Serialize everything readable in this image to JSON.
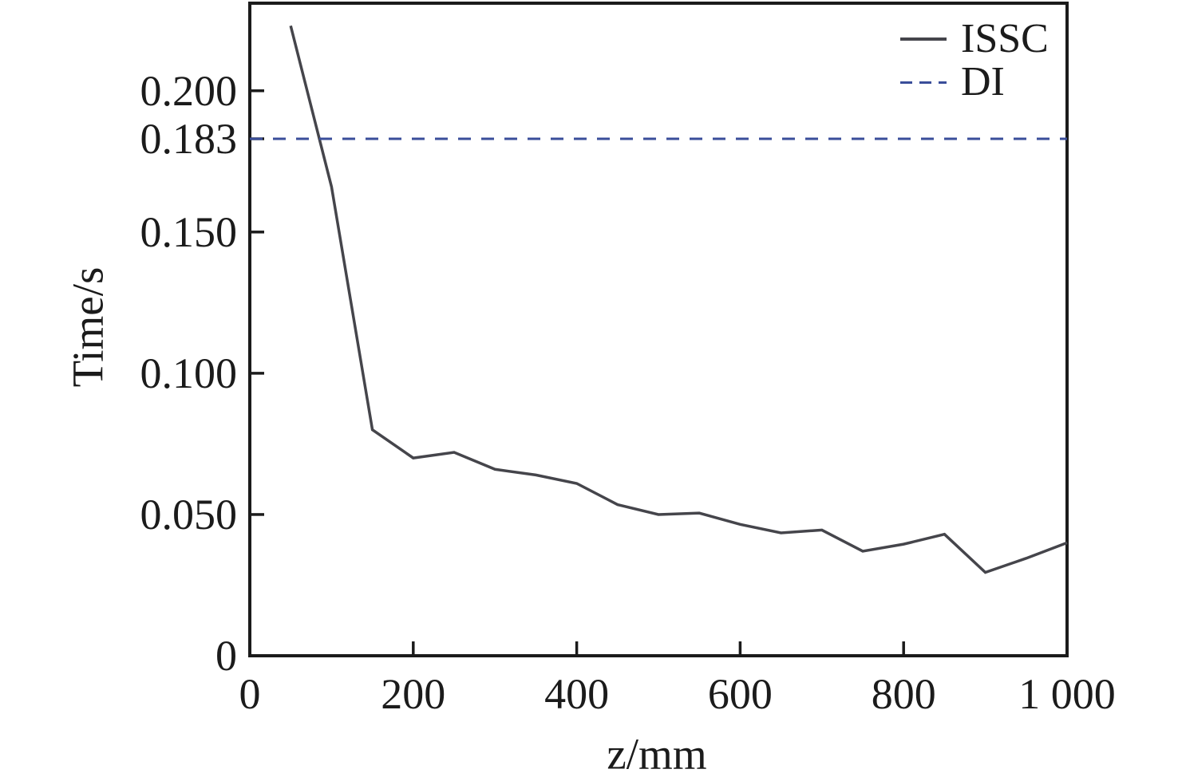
{
  "chart_data": {
    "type": "line",
    "title": "",
    "xlabel": "z/mm",
    "ylabel": "Time/s",
    "xlim": [
      0,
      1000
    ],
    "ylim": [
      0,
      0.231
    ],
    "grid": false,
    "legend_position": "top-right-inside",
    "colors": {
      "axis": "#1b1b1b",
      "text": "#1b1b1b",
      "issc_line": "#45454b",
      "di_line": "#3a4e9a"
    },
    "x_ticks": [
      {
        "v": 0,
        "label": "0",
        "mark": false
      },
      {
        "v": 200,
        "label": "200",
        "mark": true
      },
      {
        "v": 400,
        "label": "400",
        "mark": true
      },
      {
        "v": 600,
        "label": "600",
        "mark": true
      },
      {
        "v": 800,
        "label": "800",
        "mark": true
      },
      {
        "v": 1000,
        "label": "1 000",
        "mark": false
      }
    ],
    "y_ticks": [
      {
        "v": 0,
        "label": "0",
        "mark": false
      },
      {
        "v": 0.05,
        "label": "0.050",
        "mark": true
      },
      {
        "v": 0.1,
        "label": "0.100",
        "mark": true
      },
      {
        "v": 0.15,
        "label": "0.150",
        "mark": true
      },
      {
        "v": 0.183,
        "label": "0.183",
        "mark": true
      },
      {
        "v": 0.2,
        "label": "0.200",
        "mark": true
      }
    ],
    "series": [
      {
        "name": "ISSC",
        "kind": "line",
        "style": "solid",
        "color": "#45454b",
        "x": [
          50,
          100,
          150,
          200,
          250,
          300,
          350,
          400,
          450,
          500,
          550,
          600,
          650,
          700,
          750,
          800,
          850,
          900,
          950,
          1000
        ],
        "y": [
          0.223,
          0.166,
          0.08,
          0.07,
          0.072,
          0.066,
          0.064,
          0.061,
          0.0535,
          0.05,
          0.0505,
          0.0465,
          0.0435,
          0.0445,
          0.037,
          0.0395,
          0.043,
          0.0295,
          0.0345,
          0.04
        ]
      },
      {
        "name": "DI",
        "kind": "hline",
        "style": "dashed",
        "color": "#3a4e9a",
        "y_constant": 0.183
      }
    ]
  }
}
